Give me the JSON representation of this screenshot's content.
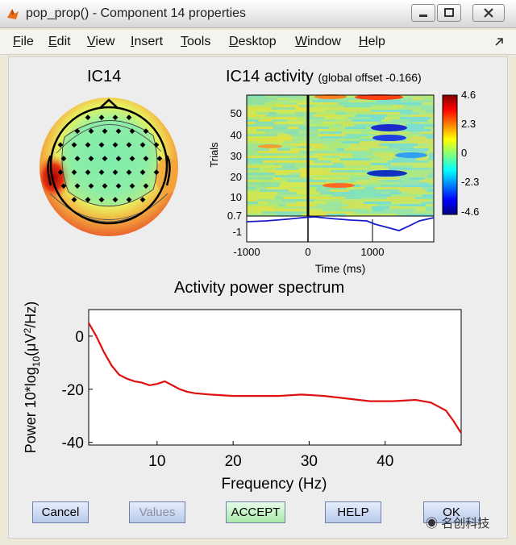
{
  "window": {
    "title": "pop_prop() - Component 14 properties"
  },
  "menu": [
    "File",
    "Edit",
    "View",
    "Insert",
    "Tools",
    "Desktop",
    "Window",
    "Help"
  ],
  "menu_mnemonics": [
    "F",
    "E",
    "V",
    "I",
    "T",
    "D",
    "W",
    "H"
  ],
  "topo": {
    "title": "IC14"
  },
  "erp": {
    "title": "IC14 activity",
    "subtitle": "(global offset -0.166)",
    "ylabel": "Trials",
    "xlabel": "Time (ms)",
    "trial_ticks": [
      "50",
      "40",
      "30",
      "20",
      "10"
    ],
    "erp_ticks": [
      "0.7",
      "-1"
    ],
    "time_ticks": [
      "-1000",
      "0",
      "1000"
    ],
    "colorbar_ticks": [
      "4.6",
      "2.3",
      "0",
      "-2.3",
      "-4.6"
    ]
  },
  "chart_data": {
    "type": "line",
    "title": "Activity power spectrum",
    "xlabel": "Frequency (Hz)",
    "ylabel_parts": [
      "Power 10*log",
      "10",
      "(μV",
      "2",
      "/Hz)"
    ],
    "xlim": [
      1,
      50
    ],
    "ylim": [
      -41,
      10
    ],
    "xticks": [
      10,
      20,
      30,
      40
    ],
    "yticks": [
      0,
      -20,
      -40
    ],
    "series": [
      {
        "name": "spectrum",
        "color": "#e01010",
        "x": [
          1,
          2,
          3,
          4,
          5,
          6,
          7,
          8,
          9,
          10,
          11,
          12,
          13,
          14,
          15,
          17,
          20,
          23,
          26,
          29,
          32,
          35,
          38,
          41,
          44,
          46,
          48,
          49,
          50
        ],
        "y": [
          5,
          0,
          -6,
          -11,
          -14.5,
          -16,
          -17,
          -17.5,
          -18.5,
          -18,
          -17,
          -18.5,
          -20,
          -21,
          -21.5,
          -22,
          -22.5,
          -22.5,
          -22.5,
          -22,
          -22.5,
          -23.5,
          -24.5,
          -24.5,
          -24,
          -25,
          -28,
          -32,
          -36.5
        ]
      }
    ]
  },
  "buttons": {
    "cancel": "Cancel",
    "values": "Values",
    "accept": "ACCEPT",
    "help": "HELP",
    "ok": "OK"
  },
  "watermark": "名创科技"
}
